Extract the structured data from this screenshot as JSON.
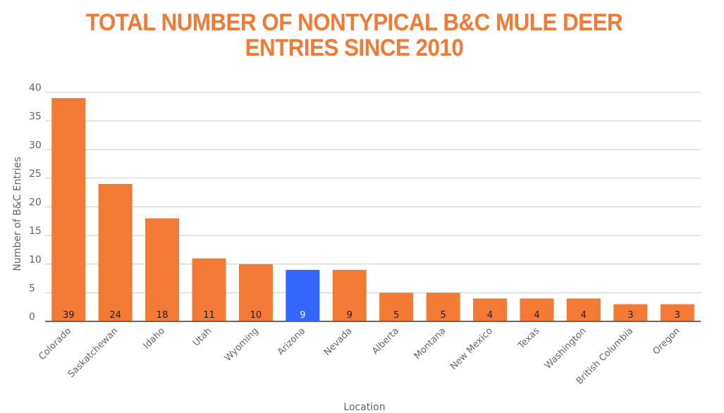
{
  "chart_data": {
    "type": "bar",
    "title": "TOTAL NUMBER OF NONTYPICAL B&C MULE DEER ENTRIES SINCE 2010",
    "xlabel": "Location",
    "ylabel": "Number of B&C Entries",
    "ylim": [
      0,
      40
    ],
    "yticks": [
      0,
      5,
      10,
      15,
      20,
      25,
      30,
      35,
      40
    ],
    "categories": [
      "Colorado",
      "Saskatchewan",
      "Idaho",
      "Utah",
      "Wyoming",
      "Arizona",
      "Nevada",
      "Alberta",
      "Montana",
      "New Mexico",
      "Texas",
      "Washington",
      "British Columbia",
      "Oregon"
    ],
    "values": [
      39,
      24,
      18,
      11,
      10,
      9,
      9,
      5,
      5,
      4,
      4,
      4,
      3,
      3
    ],
    "highlight_category": "Arizona",
    "colors": {
      "bar": "#f27a35",
      "highlight": "#3366ff",
      "grid": "#cccccc",
      "axis": "#666666"
    },
    "grid": true
  }
}
